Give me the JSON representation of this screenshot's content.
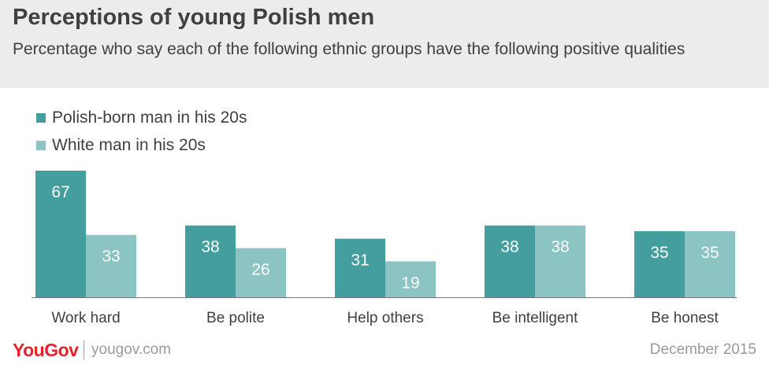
{
  "title": "Perceptions of young Polish men",
  "subtitle": "Percentage who say each of the following ethnic groups have the following positive qualities",
  "footer": {
    "logo": "YouGov",
    "site": "yougov.com",
    "date": "December 2015"
  },
  "chart_data": {
    "type": "bar",
    "categories": [
      "Work hard",
      "Be polite",
      "Help others",
      "Be intelligent",
      "Be honest"
    ],
    "series": [
      {
        "name": "Polish-born man in his 20s",
        "values": [
          67,
          38,
          31,
          38,
          35
        ],
        "color": "#459e9e"
      },
      {
        "name": "White man in his 20s",
        "values": [
          33,
          26,
          19,
          38,
          35
        ],
        "color": "#8cc4c4"
      }
    ],
    "ylim": [
      0,
      67
    ],
    "legend": "top-left",
    "grid": false,
    "data_labels": true
  }
}
